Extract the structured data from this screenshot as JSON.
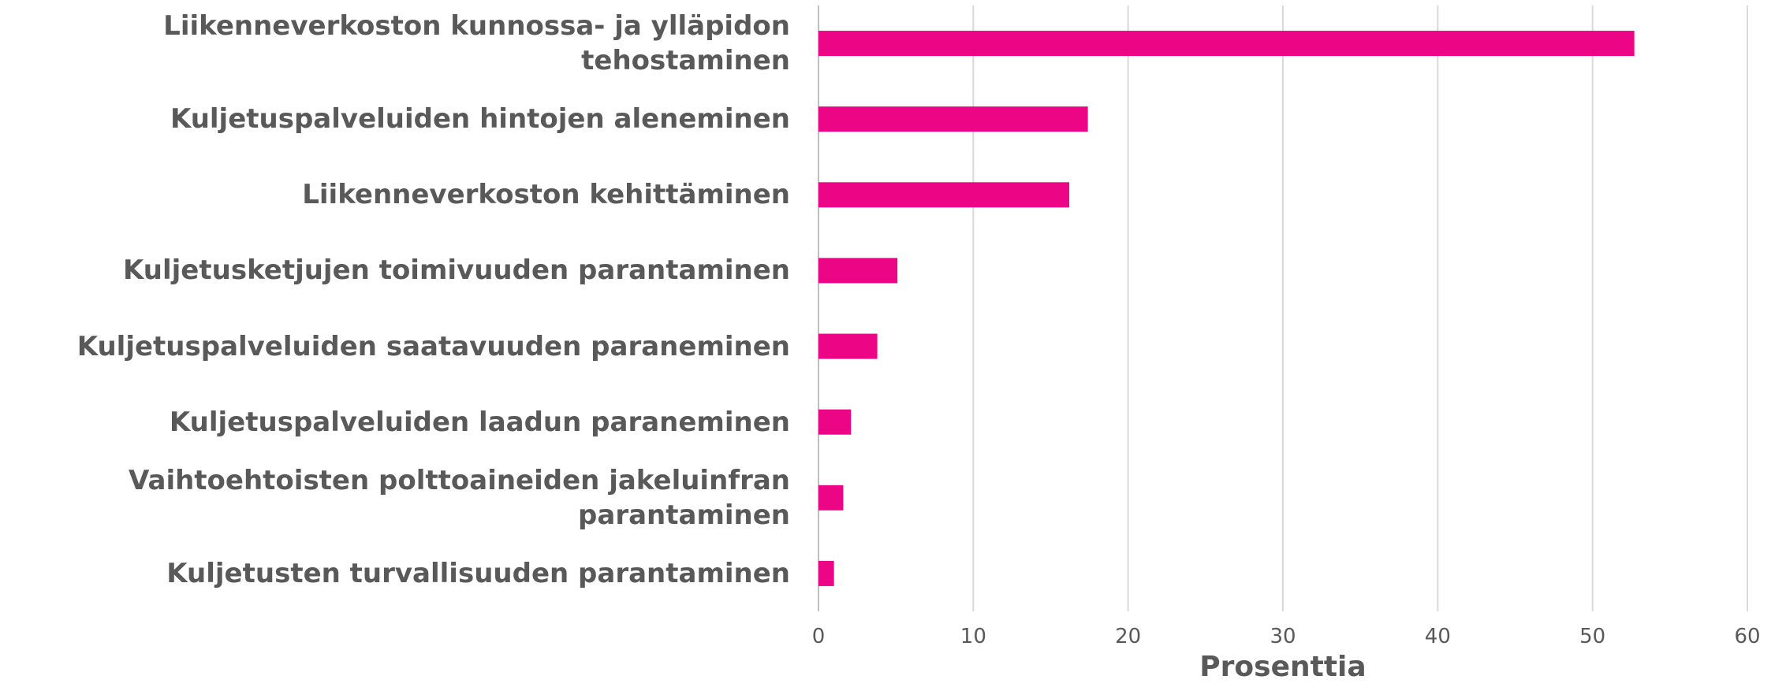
{
  "chart_data": {
    "type": "barh",
    "categories": [
      "Liikenneverkoston kunnossa- ja ylläpidon tehostaminen",
      "Kuljetuspalveluiden hintojen aleneminen",
      "Liikenneverkoston kehittäminen",
      "Kuljetusketjujen toimivuuden parantaminen",
      "Kuljetuspalveluiden saatavuuden paraneminen",
      "Kuljetuspalveluiden laadun paraneminen",
      "Vaihtoehtoisten polttoaineiden jakeluinfran parantaminen",
      "Kuljetusten turvallisuuden parantaminen"
    ],
    "values": [
      52.7,
      17.4,
      16.2,
      5.1,
      3.8,
      2.1,
      1.6,
      1.0
    ],
    "color": "#ec0585",
    "xlabel": "Prosenttia",
    "xlim": [
      0,
      60
    ],
    "xticks": [
      0,
      10,
      20,
      30,
      40,
      50,
      60
    ],
    "grid": true
  }
}
